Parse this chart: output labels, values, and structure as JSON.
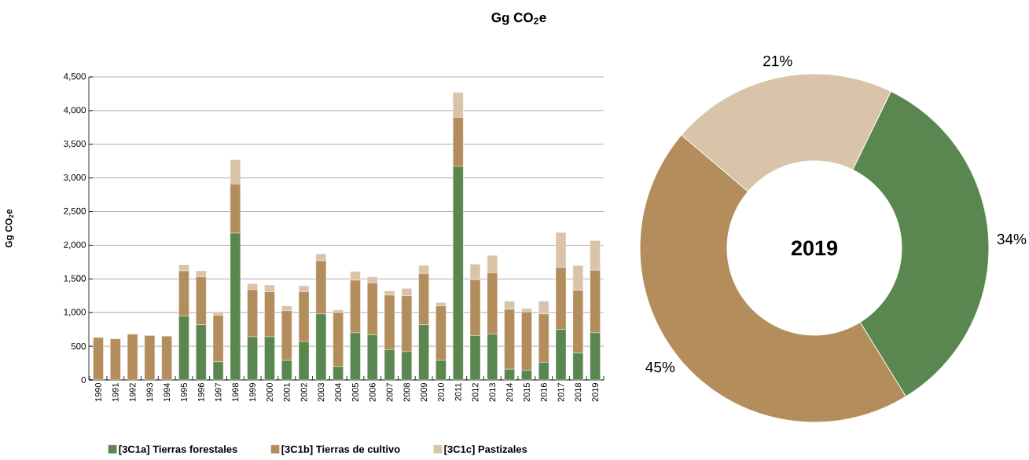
{
  "chart_data": [
    {
      "type": "bar",
      "stacked": true,
      "subtitle": "Gg CO$_{2}$e",
      "ylabel": "Gg CO$_{2}$e",
      "categories": [
        "1990",
        "1991",
        "1992",
        "1993",
        "1994",
        "1995",
        "1996",
        "1997",
        "1998",
        "1999",
        "2000",
        "2001",
        "2002",
        "2003",
        "2004",
        "2005",
        "2006",
        "2007",
        "2008",
        "2009",
        "2010",
        "2011",
        "2012",
        "2013",
        "2014",
        "2015",
        "2016",
        "2017",
        "2018",
        "2019"
      ],
      "series": [
        {
          "name": "[3C1a] Tierras forestales",
          "color": "#5a8650",
          "values": [
            0,
            0,
            0,
            0,
            0,
            950,
            820,
            270,
            2180,
            640,
            640,
            290,
            570,
            980,
            200,
            700,
            670,
            450,
            420,
            820,
            290,
            3170,
            660,
            680,
            160,
            140,
            260,
            750,
            400,
            700
          ]
        },
        {
          "name": "[3C1b] Tierras de cultivo",
          "color": "#b38d5c",
          "values": [
            630,
            610,
            680,
            660,
            650,
            670,
            710,
            690,
            730,
            700,
            670,
            740,
            740,
            790,
            800,
            780,
            770,
            810,
            830,
            760,
            810,
            730,
            830,
            910,
            890,
            870,
            720,
            920,
            930,
            930
          ]
        },
        {
          "name": "[3C1c] Pastizales",
          "color": "#d9c4aa",
          "values": [
            0,
            0,
            0,
            0,
            0,
            90,
            90,
            50,
            360,
            90,
            100,
            70,
            90,
            100,
            40,
            130,
            90,
            60,
            110,
            120,
            50,
            370,
            230,
            260,
            120,
            50,
            190,
            520,
            370,
            440
          ]
        }
      ],
      "ylim": [
        0,
        4500
      ],
      "yticks": [
        0,
        {
          "value": 500,
          "label": "500"
        },
        {
          "value": 1000,
          "label": "1,000"
        },
        {
          "value": 1500,
          "label": "1,500"
        },
        {
          "value": 2000,
          "label": "2,000"
        },
        {
          "value": 2500,
          "label": "2,500"
        },
        {
          "value": 3000,
          "label": "3,000"
        },
        {
          "value": 3500,
          "label": "3,500"
        },
        {
          "value": 4000,
          "label": "4,000"
        },
        {
          "value": 4500,
          "label": "4,500"
        }
      ],
      "grid": "y",
      "legend": "bottom"
    },
    {
      "type": "donut",
      "categories": [
        null,
        null,
        null
      ],
      "values": [
        34,
        45,
        21
      ],
      "colors": [
        "#5a8650",
        "#b38d5c",
        "#d9c4aa"
      ],
      "value_labels": [
        "34%",
        "45%",
        "21%"
      ],
      "annotations": [
        "2019"
      ]
    }
  ]
}
